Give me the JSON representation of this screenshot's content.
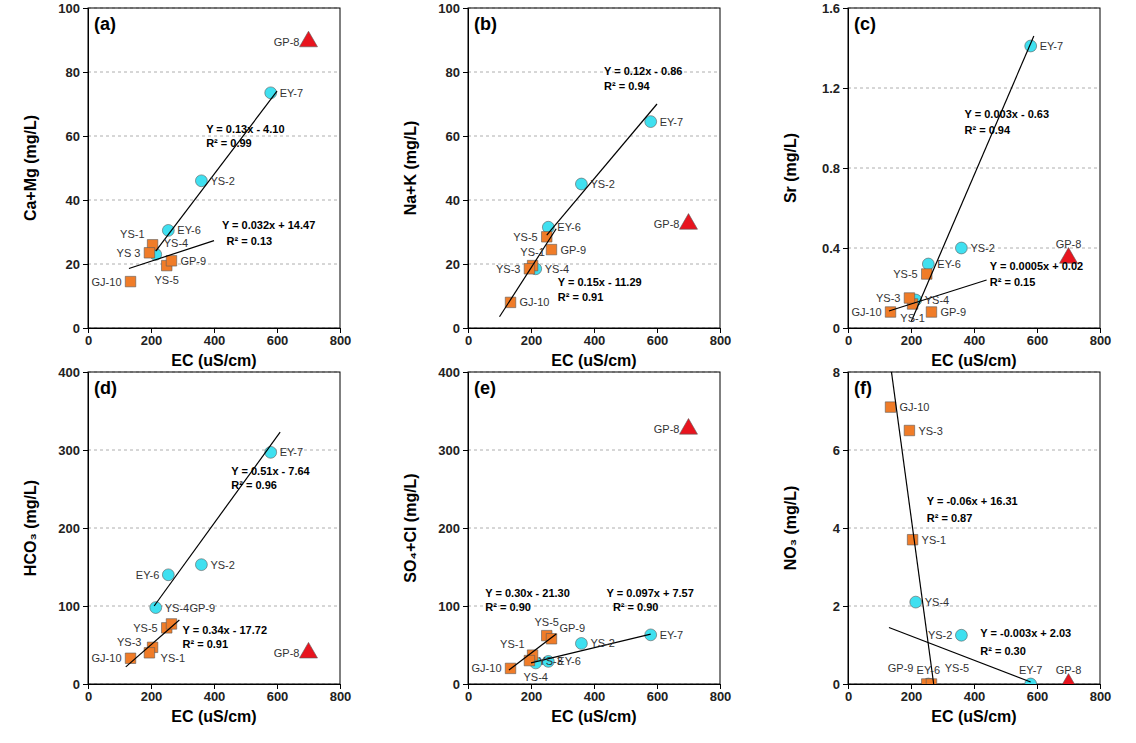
{
  "chart_data": [
    {
      "type": "scatter",
      "title": "(a)",
      "x_label": "EC (uS/cm)",
      "y_label": "Ca+Mg (mg/L)",
      "xlim": [
        0,
        800
      ],
      "xticks": [
        0,
        200,
        400,
        600,
        800
      ],
      "ylim": [
        0,
        100
      ],
      "yticks": [
        0,
        20,
        40,
        60,
        80,
        100
      ],
      "grid": true,
      "series": [
        {
          "type": "scatter",
          "color": "#3fe0f0",
          "marker": "circle",
          "x": [
            580,
            360,
            255,
            215
          ],
          "values": [
            73.5,
            46,
            30.5,
            23
          ],
          "labels": [
            "EY-7",
            "YS-2",
            "EY-6",
            "YS-4"
          ]
        },
        {
          "type": "scatter",
          "color": "#f07c28",
          "marker": "square",
          "x": [
            205,
            195,
            250,
            265,
            135
          ],
          "values": [
            26,
            23.5,
            19.5,
            21,
            14.5
          ],
          "labels": [
            "YS-1",
            "YS 3",
            "YS-5",
            "GP-9",
            "GJ-10"
          ]
        },
        {
          "type": "scatter",
          "color": "#e8141e",
          "marker": "triangle",
          "x": [
            700
          ],
          "values": [
            89.5
          ],
          "labels": [
            "GP-8"
          ]
        },
        {
          "type": "line",
          "color": "#000000",
          "line_style": "solid",
          "x": [
            215,
            600
          ],
          "values": [
            24,
            74
          ]
        },
        {
          "type": "line",
          "color": "#000000",
          "line_style": "solid",
          "x": [
            130,
            400
          ],
          "values": [
            18.6,
            27.3
          ]
        }
      ],
      "annotations": [
        {
          "text": "Y = 0.13x - 4.10",
          "x": 375,
          "y": 61
        },
        {
          "text": "R² = 0.99",
          "x": 375,
          "y": 56.5
        },
        {
          "text": "Y = 0.032x + 14.47",
          "x": 425,
          "y": 31
        },
        {
          "text": "R² = 0.13",
          "x": 440,
          "y": 26
        }
      ]
    },
    {
      "type": "scatter",
      "title": "(b)",
      "x_label": "EC (uS/cm)",
      "y_label": "Na+K (mg/L)",
      "xlim": [
        0,
        800
      ],
      "xticks": [
        0,
        200,
        400,
        600,
        800
      ],
      "ylim": [
        0,
        100
      ],
      "yticks": [
        0,
        20,
        40,
        60,
        80,
        100
      ],
      "grid": true,
      "series": [
        {
          "type": "scatter",
          "color": "#3fe0f0",
          "marker": "circle",
          "x": [
            580,
            360,
            255,
            215
          ],
          "values": [
            64.5,
            45,
            31.5,
            18.5
          ],
          "labels": [
            "EY-7",
            "YS-2",
            "EY-6",
            "YS-4"
          ]
        },
        {
          "type": "scatter",
          "color": "#f07c28",
          "marker": "square",
          "x": [
            205,
            195,
            250,
            265,
            135
          ],
          "values": [
            19.5,
            18.5,
            28.5,
            24.5,
            8
          ],
          "labels": [
            "YS-1",
            "YS-3",
            "YS-5",
            "GP-9",
            "GJ-10"
          ]
        },
        {
          "type": "scatter",
          "color": "#e8141e",
          "marker": "triangle",
          "x": [
            700
          ],
          "values": [
            32.5
          ],
          "labels": [
            "GP-8"
          ]
        },
        {
          "type": "line",
          "color": "#000000",
          "line_style": "solid",
          "x": [
            250,
            600
          ],
          "values": [
            29,
            70
          ]
        },
        {
          "type": "line",
          "color": "#000000",
          "line_style": "solid",
          "x": [
            100,
            280
          ],
          "values": [
            3.5,
            31
          ]
        }
      ],
      "annotations": [
        {
          "text": "Y = 0.12x - 0.86",
          "x": 432,
          "y": 79
        },
        {
          "text": "R² = 0.94",
          "x": 432,
          "y": 74.5
        },
        {
          "text": "Y = 0.15x - 11.29",
          "x": 285,
          "y": 13
        },
        {
          "text": "R² = 0.91",
          "x": 285,
          "y": 8.5
        }
      ]
    },
    {
      "type": "scatter",
      "title": "(c)",
      "x_label": "EC (uS/cm)",
      "y_label": "Sr (mg/L)",
      "xlim": [
        0,
        800
      ],
      "xticks": [
        0,
        200,
        400,
        600,
        800
      ],
      "ylim": [
        0,
        1.6
      ],
      "yticks": [
        0,
        0.4,
        0.8,
        1.2,
        1.6
      ],
      "grid": true,
      "series": [
        {
          "type": "scatter",
          "color": "#3fe0f0",
          "marker": "circle",
          "x": [
            580,
            360,
            255,
            215
          ],
          "values": [
            1.41,
            0.4,
            0.32,
            0.14
          ],
          "labels": [
            "EY-7",
            "YS-2",
            "EY-6",
            "YS-4"
          ]
        },
        {
          "type": "scatter",
          "color": "#f07c28",
          "marker": "square",
          "x": [
            205,
            195,
            250,
            265,
            135
          ],
          "values": [
            0.12,
            0.15,
            0.27,
            0.08,
            0.08
          ],
          "labels": [
            "YS-1",
            "YS-3",
            "YS-5",
            "GP-9",
            "GJ-10"
          ]
        },
        {
          "type": "scatter",
          "color": "#e8141e",
          "marker": "triangle",
          "x": [
            700
          ],
          "values": [
            0.35
          ],
          "labels": [
            "GP-8"
          ]
        },
        {
          "type": "line",
          "color": "#000000",
          "line_style": "solid",
          "x": [
            200,
            590
          ],
          "values": [
            0.03,
            1.46
          ]
        },
        {
          "type": "line",
          "color": "#000000",
          "line_style": "solid",
          "x": [
            130,
            440
          ],
          "values": [
            0.085,
            0.24
          ]
        }
      ],
      "annotations": [
        {
          "text": "Y = 0.003x - 0.63",
          "x": 370,
          "y": 1.05
        },
        {
          "text": "R² = 0.94",
          "x": 370,
          "y": 0.97
        },
        {
          "text": "Y = 0.0005x + 0.02",
          "x": 450,
          "y": 0.29
        },
        {
          "text": "R² = 0.15",
          "x": 450,
          "y": 0.21
        }
      ]
    },
    {
      "type": "scatter",
      "title": "(d)",
      "x_label": "EC (uS/cm)",
      "y_label": "HCO₃ (mg/L)",
      "xlim": [
        0,
        800
      ],
      "xticks": [
        0,
        200,
        400,
        600,
        800
      ],
      "ylim": [
        0,
        400
      ],
      "yticks": [
        0,
        100,
        200,
        300,
        400
      ],
      "grid": true,
      "series": [
        {
          "type": "scatter",
          "color": "#3fe0f0",
          "marker": "circle",
          "x": [
            580,
            360,
            255,
            215
          ],
          "values": [
            297,
            153,
            140,
            98
          ],
          "labels": [
            "EY-7",
            "YS-2",
            "EY-6",
            "YS-4"
          ]
        },
        {
          "type": "scatter",
          "color": "#f07c28",
          "marker": "square",
          "x": [
            205,
            195,
            250,
            265,
            135
          ],
          "values": [
            47,
            40,
            72,
            77,
            33
          ],
          "labels": [
            "YS-1",
            "YS-3",
            "YS-5",
            "GP-9",
            "GJ-10"
          ]
        },
        {
          "type": "scatter",
          "color": "#e8141e",
          "marker": "triangle",
          "x": [
            700
          ],
          "values": [
            40
          ],
          "labels": [
            "GP-8"
          ]
        },
        {
          "type": "line",
          "color": "#000000",
          "line_style": "solid",
          "x": [
            210,
            610
          ],
          "values": [
            100,
            323
          ]
        },
        {
          "type": "line",
          "color": "#000000",
          "line_style": "solid",
          "x": [
            120,
            290
          ],
          "values": [
            22,
            82
          ]
        }
      ],
      "annotations": [
        {
          "text": "Y = 0.51x - 7.64",
          "x": 455,
          "y": 268
        },
        {
          "text": "R² = 0.96",
          "x": 455,
          "y": 250
        },
        {
          "text": "Y = 0.34x - 17.72",
          "x": 300,
          "y": 64
        },
        {
          "text": "R² = 0.91",
          "x": 300,
          "y": 46
        }
      ]
    },
    {
      "type": "scatter",
      "title": "(e)",
      "x_label": "EC (uS/cm)",
      "y_label": "SO₄+Cl (mg/L)",
      "xlim": [
        0,
        800
      ],
      "xticks": [
        0,
        200,
        400,
        600,
        800
      ],
      "ylim": [
        0,
        400
      ],
      "yticks": [
        0,
        100,
        200,
        300,
        400
      ],
      "grid": true,
      "series": [
        {
          "type": "scatter",
          "color": "#3fe0f0",
          "marker": "circle",
          "x": [
            580,
            360,
            255,
            215
          ],
          "values": [
            63,
            52,
            29,
            27
          ],
          "labels": [
            "EY-7",
            "YS-2",
            "EY-6",
            "YS-4"
          ]
        },
        {
          "type": "scatter",
          "color": "#f07c28",
          "marker": "square",
          "x": [
            205,
            195,
            250,
            265,
            135
          ],
          "values": [
            37,
            30,
            62,
            58,
            20
          ],
          "labels": [
            "YS-1",
            "YS-3",
            "YS-5",
            "GP-9",
            "GJ-10"
          ]
        },
        {
          "type": "scatter",
          "color": "#e8141e",
          "marker": "triangle",
          "x": [
            700
          ],
          "values": [
            327
          ],
          "labels": [
            "GP-8"
          ]
        },
        {
          "type": "line",
          "color": "#000000",
          "line_style": "solid",
          "x": [
            130,
            280
          ],
          "values": [
            18,
            64
          ]
        },
        {
          "type": "line",
          "color": "#000000",
          "line_style": "solid",
          "x": [
            200,
            580
          ],
          "values": [
            27,
            64
          ]
        }
      ],
      "annotations": [
        {
          "text": "Y = 0.30x - 21.30",
          "x": 55,
          "y": 112
        },
        {
          "text": "R² = 0.90",
          "x": 55,
          "y": 94
        },
        {
          "text": "Y = 0.097x + 7.57",
          "x": 440,
          "y": 112
        },
        {
          "text": "R² = 0.90",
          "x": 460,
          "y": 94
        }
      ]
    },
    {
      "type": "scatter",
      "title": "(f)",
      "x_label": "EC (uS/cm)",
      "y_label": "NO₃ (mg/L)",
      "xlim": [
        0,
        800
      ],
      "xticks": [
        0,
        200,
        400,
        600,
        800
      ],
      "ylim": [
        0,
        8
      ],
      "yticks": [
        0,
        2,
        4,
        6,
        8
      ],
      "grid": true,
      "series": [
        {
          "type": "scatter",
          "color": "#3fe0f0",
          "marker": "circle",
          "x": [
            580,
            360,
            255,
            215
          ],
          "values": [
            0,
            1.25,
            0,
            2.1
          ],
          "labels": [
            "EY-7",
            "YS-2",
            "EY-6",
            "YS-4"
          ]
        },
        {
          "type": "scatter",
          "color": "#f07c28",
          "marker": "square",
          "x": [
            205,
            195,
            250,
            265,
            135
          ],
          "values": [
            3.7,
            6.5,
            0,
            0,
            7.1
          ],
          "labels": [
            "YS-1",
            "YS-3",
            "YS-5",
            "GP-9",
            "GJ-10"
          ]
        },
        {
          "type": "scatter",
          "color": "#e8141e",
          "marker": "triangle",
          "x": [
            700
          ],
          "values": [
            0
          ],
          "labels": [
            "GP-8"
          ]
        },
        {
          "type": "line",
          "color": "#000000",
          "line_style": "solid",
          "x": [
            138,
            272
          ],
          "values": [
            8,
            0
          ]
        },
        {
          "type": "line",
          "color": "#000000",
          "line_style": "solid",
          "x": [
            130,
            580
          ],
          "values": [
            1.45,
            0.05
          ]
        }
      ],
      "annotations": [
        {
          "text": "Y = -0.06x + 16.31",
          "x": 250,
          "y": 4.6
        },
        {
          "text": "R² = 0.87",
          "x": 250,
          "y": 4.15
        },
        {
          "text": "Y = -0.003x + 2.03",
          "x": 420,
          "y": 1.2
        },
        {
          "text": "R² = 0.30",
          "x": 420,
          "y": 0.75
        }
      ]
    }
  ]
}
